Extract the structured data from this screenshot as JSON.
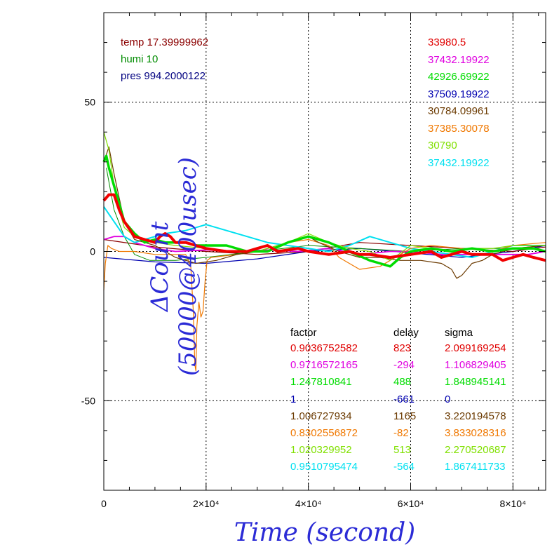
{
  "chart_data": {
    "type": "line",
    "title": "",
    "xlabel": "Time (second)",
    "ylabel": "ΔCount (50000@400usec)",
    "xlim": [
      0,
      86400
    ],
    "ylim": [
      -80,
      80
    ],
    "grid": true,
    "x_ticks": [
      {
        "value": 0,
        "label": "0"
      },
      {
        "value": 20000,
        "label": "2×10⁴"
      },
      {
        "value": 40000,
        "label": "4×10⁴"
      },
      {
        "value": 60000,
        "label": "6×10⁴"
      },
      {
        "value": 80000,
        "label": "8×10⁴"
      }
    ],
    "y_ticks": [
      {
        "value": 50,
        "label": "50"
      },
      {
        "value": 0,
        "label": "0"
      },
      {
        "value": -50,
        "label": "-50"
      }
    ],
    "env": [
      {
        "text": "temp 17.39999962",
        "color": "#8b0000"
      },
      {
        "text": "humi 10",
        "color": "#008c00"
      },
      {
        "text": "pres 994.2000122",
        "color": "#000080"
      }
    ],
    "means": [
      {
        "text": "33980.5",
        "color": "#e00000"
      },
      {
        "text": "37432.19922",
        "color": "#e000e0"
      },
      {
        "text": "42926.69922",
        "color": "#00dc00"
      },
      {
        "text": "37509.19922",
        "color": "#0000b0"
      },
      {
        "text": "30784.09961",
        "color": "#6b3a00"
      },
      {
        "text": "37385.30078",
        "color": "#f07800"
      },
      {
        "text": "30790",
        "color": "#80e000"
      },
      {
        "text": "37432.19922",
        "color": "#00e0f0"
      }
    ],
    "table_headers": [
      "factor",
      "delay",
      "sigma"
    ],
    "table_rows": [
      {
        "factor": "0.9036752582",
        "delay": "823",
        "sigma": "2.099169254",
        "color": "#e00000"
      },
      {
        "factor": "0.9716572165",
        "delay": "-294",
        "sigma": "1.106829405",
        "color": "#e000e0"
      },
      {
        "factor": "1.247810841",
        "delay": "488",
        "sigma": "1.848945141",
        "color": "#00dc00"
      },
      {
        "factor": "1",
        "delay": "-661",
        "sigma": "0",
        "color": "#0000b0"
      },
      {
        "factor": "1.006727934",
        "delay": "1165",
        "sigma": "3.220194578",
        "color": "#6b3a00"
      },
      {
        "factor": "0.8302556872",
        "delay": "-82",
        "sigma": "3.833028316",
        "color": "#f07800"
      },
      {
        "factor": "1.020329952",
        "delay": "513",
        "sigma": "2.270520687",
        "color": "#80e000"
      },
      {
        "factor": "0.9510795474",
        "delay": "-564",
        "sigma": "1.867411733",
        "color": "#00e0f0"
      }
    ],
    "series": [
      {
        "color": "#0000b0",
        "width": 1.2,
        "points": [
          [
            0,
            -2
          ],
          [
            10000,
            -3.5
          ],
          [
            20000,
            -4
          ],
          [
            30000,
            -2.5
          ],
          [
            40000,
            0
          ],
          [
            50000,
            1
          ],
          [
            60000,
            -0.5
          ],
          [
            70000,
            -2
          ],
          [
            80000,
            0
          ],
          [
            86400,
            2
          ]
        ]
      },
      {
        "color": "#8b0000",
        "width": 1.2,
        "points": [
          [
            0,
            4
          ],
          [
            10000,
            1.5
          ],
          [
            20000,
            0
          ],
          [
            30000,
            -1
          ],
          [
            40000,
            0
          ],
          [
            50000,
            3
          ],
          [
            60000,
            2
          ],
          [
            70000,
            1
          ],
          [
            80000,
            0
          ],
          [
            86400,
            1.5
          ]
        ]
      },
      {
        "color": "#008c00",
        "width": 1.0,
        "points": [
          [
            500,
            28
          ],
          [
            2000,
            14
          ],
          [
            4000,
            5
          ],
          [
            6000,
            -1
          ],
          [
            9000,
            -3
          ],
          [
            14000,
            -3
          ],
          [
            20000,
            -2
          ],
          [
            30000,
            0
          ],
          [
            40000,
            2
          ],
          [
            50000,
            1
          ],
          [
            60000,
            0
          ],
          [
            70000,
            1
          ],
          [
            80000,
            1
          ],
          [
            86400,
            2
          ]
        ]
      },
      {
        "color": "#e000e0",
        "width": 1.8,
        "points": [
          [
            0,
            4
          ],
          [
            2000,
            5
          ],
          [
            4000,
            5
          ],
          [
            6000,
            3
          ],
          [
            8000,
            2
          ],
          [
            10000,
            1
          ],
          [
            14000,
            0
          ],
          [
            20000,
            0.5
          ],
          [
            26000,
            0
          ],
          [
            32000,
            0.5
          ],
          [
            38000,
            0
          ],
          [
            44000,
            1
          ],
          [
            50000,
            -1
          ],
          [
            56000,
            0
          ],
          [
            60000,
            0
          ],
          [
            66000,
            -1
          ],
          [
            72000,
            -1
          ],
          [
            78000,
            -1
          ],
          [
            83000,
            -1
          ],
          [
            86400,
            0
          ]
        ]
      },
      {
        "color": "#00e0f0",
        "width": 2.0,
        "points": [
          [
            0,
            15
          ],
          [
            2000,
            10
          ],
          [
            4000,
            5
          ],
          [
            6000,
            3
          ],
          [
            8000,
            4
          ],
          [
            12000,
            6
          ],
          [
            16000,
            7
          ],
          [
            20000,
            9
          ],
          [
            24000,
            7
          ],
          [
            28000,
            5
          ],
          [
            32000,
            3
          ],
          [
            36000,
            2
          ],
          [
            40000,
            1
          ],
          [
            44000,
            0
          ],
          [
            48000,
            2
          ],
          [
            52000,
            5
          ],
          [
            56000,
            3
          ],
          [
            60000,
            1
          ],
          [
            64000,
            0
          ],
          [
            68000,
            -1
          ],
          [
            72000,
            -2
          ],
          [
            76000,
            0
          ],
          [
            80000,
            2
          ],
          [
            86400,
            2
          ]
        ]
      },
      {
        "color": "#f07800",
        "width": 1.2,
        "points": [
          [
            0,
            -13
          ],
          [
            300,
            -4
          ],
          [
            800,
            2
          ],
          [
            1500,
            1
          ],
          [
            3000,
            0
          ],
          [
            6000,
            0
          ],
          [
            10000,
            -1
          ],
          [
            14000,
            -1
          ],
          [
            16000,
            -1
          ],
          [
            17000,
            -5
          ],
          [
            17500,
            -20
          ],
          [
            17800,
            -38
          ],
          [
            18000,
            -40
          ],
          [
            18200,
            -25
          ],
          [
            18600,
            -17
          ],
          [
            19000,
            -22
          ],
          [
            19400,
            -20
          ],
          [
            19800,
            -10
          ],
          [
            20200,
            -3
          ],
          [
            21000,
            -2
          ],
          [
            26000,
            -1
          ],
          [
            30000,
            0
          ],
          [
            36000,
            3
          ],
          [
            40000,
            4
          ],
          [
            44000,
            2
          ],
          [
            46000,
            -2
          ],
          [
            50000,
            -6
          ],
          [
            54000,
            -5
          ],
          [
            56000,
            -3
          ],
          [
            60000,
            1
          ],
          [
            64000,
            2
          ],
          [
            70000,
            1
          ],
          [
            76000,
            0
          ],
          [
            80000,
            2
          ],
          [
            86400,
            3
          ]
        ]
      },
      {
        "color": "#6b3a00",
        "width": 1.2,
        "points": [
          [
            0,
            30
          ],
          [
            1000,
            35
          ],
          [
            2000,
            26
          ],
          [
            3000,
            18
          ],
          [
            4000,
            10
          ],
          [
            6000,
            4
          ],
          [
            10000,
            2
          ],
          [
            14000,
            -2
          ],
          [
            18000,
            -4
          ],
          [
            22000,
            -3
          ],
          [
            26000,
            -1
          ],
          [
            30000,
            0
          ],
          [
            36000,
            3
          ],
          [
            40000,
            5
          ],
          [
            42000,
            3
          ],
          [
            46000,
            0
          ],
          [
            50000,
            -2
          ],
          [
            54000,
            -2
          ],
          [
            58000,
            -3
          ],
          [
            62000,
            -3
          ],
          [
            66000,
            -4
          ],
          [
            68000,
            -6
          ],
          [
            69000,
            -9
          ],
          [
            70000,
            -8
          ],
          [
            72000,
            -4
          ],
          [
            74000,
            -3
          ],
          [
            76000,
            -1
          ],
          [
            80000,
            1
          ],
          [
            86400,
            2
          ]
        ]
      },
      {
        "color": "#80e000",
        "width": 1.2,
        "points": [
          [
            0,
            40
          ],
          [
            1000,
            34
          ],
          [
            2000,
            22
          ],
          [
            3000,
            14
          ],
          [
            4000,
            8
          ],
          [
            6000,
            5
          ],
          [
            10000,
            3
          ],
          [
            14000,
            2
          ],
          [
            20000,
            1
          ],
          [
            26000,
            0
          ],
          [
            30000,
            0
          ],
          [
            36000,
            3
          ],
          [
            40000,
            6
          ],
          [
            44000,
            3
          ],
          [
            48000,
            1
          ],
          [
            52000,
            0
          ],
          [
            56000,
            -3
          ],
          [
            60000,
            2
          ],
          [
            64000,
            1
          ],
          [
            68000,
            0
          ],
          [
            72000,
            1
          ],
          [
            76000,
            1
          ],
          [
            80000,
            2
          ],
          [
            86400,
            2
          ]
        ]
      },
      {
        "color": "#00dc00",
        "width": 3.5,
        "points": [
          [
            0,
            30
          ],
          [
            500,
            32
          ],
          [
            1000,
            28
          ],
          [
            2000,
            22
          ],
          [
            3000,
            16
          ],
          [
            4000,
            10
          ],
          [
            6000,
            6
          ],
          [
            8000,
            3
          ],
          [
            10000,
            4
          ],
          [
            12000,
            3
          ],
          [
            14000,
            3
          ],
          [
            16000,
            3
          ],
          [
            18000,
            2
          ],
          [
            20000,
            2
          ],
          [
            24000,
            2
          ],
          [
            28000,
            0
          ],
          [
            32000,
            0
          ],
          [
            36000,
            3
          ],
          [
            40000,
            5
          ],
          [
            44000,
            3
          ],
          [
            48000,
            0
          ],
          [
            52000,
            -3
          ],
          [
            54000,
            -4
          ],
          [
            56000,
            -5
          ],
          [
            58000,
            -2
          ],
          [
            60000,
            0
          ],
          [
            64000,
            1
          ],
          [
            68000,
            0
          ],
          [
            72000,
            1
          ],
          [
            76000,
            0
          ],
          [
            80000,
            1
          ],
          [
            84000,
            1
          ],
          [
            86400,
            0
          ]
        ]
      },
      {
        "color": "#f20000",
        "width": 4.0,
        "points": [
          [
            0,
            17
          ],
          [
            1000,
            19
          ],
          [
            2000,
            19
          ],
          [
            3000,
            14
          ],
          [
            4000,
            10
          ],
          [
            6000,
            5
          ],
          [
            8000,
            4
          ],
          [
            10000,
            3
          ],
          [
            11000,
            5
          ],
          [
            12000,
            6
          ],
          [
            13000,
            5
          ],
          [
            14000,
            3
          ],
          [
            16000,
            3
          ],
          [
            18000,
            2
          ],
          [
            20000,
            1
          ],
          [
            24000,
            0
          ],
          [
            28000,
            0
          ],
          [
            30000,
            1
          ],
          [
            32000,
            2
          ],
          [
            34000,
            0
          ],
          [
            38000,
            1
          ],
          [
            40000,
            0
          ],
          [
            44000,
            -1
          ],
          [
            48000,
            0
          ],
          [
            50000,
            -1
          ],
          [
            52000,
            -1
          ],
          [
            56000,
            -2
          ],
          [
            60000,
            -1
          ],
          [
            64000,
            0
          ],
          [
            66000,
            -2
          ],
          [
            68000,
            -1
          ],
          [
            70000,
            0
          ],
          [
            72000,
            -1
          ],
          [
            76000,
            -1
          ],
          [
            78000,
            -3
          ],
          [
            80000,
            -2
          ],
          [
            82000,
            -1
          ],
          [
            84000,
            -2
          ],
          [
            86400,
            -3
          ]
        ]
      }
    ]
  }
}
